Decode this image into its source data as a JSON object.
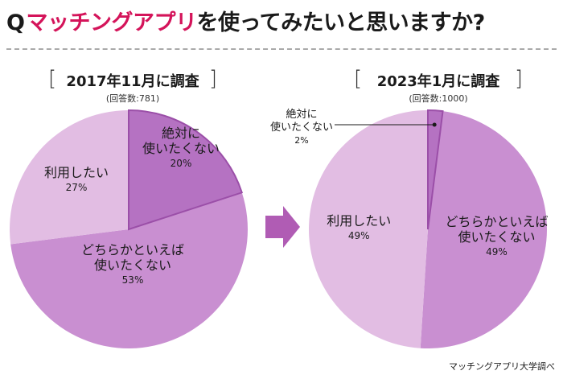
{
  "headline": {
    "q": "Q",
    "accent": "マッチングアプリ",
    "rest": "を使ってみたいと思いますか?"
  },
  "source": "マッチングアプリ大学調べ",
  "colors": {
    "light": "#e2bde3",
    "mid": "#c98fd1",
    "dark": "#b572c2",
    "stroke": "#9b4fa8",
    "arrow": "#b05cb4"
  },
  "chart_data": [
    {
      "type": "pie",
      "title": "2017年11月に調査",
      "subtitle": "(回答数:781)",
      "slices": [
        {
          "label": "絶対に\n使いたくない",
          "label_lines": [
            "絶対に",
            "使いたくない"
          ],
          "value": 20,
          "display": "20%"
        },
        {
          "label": "どちらかといえば\n使いたくない",
          "label_lines": [
            "どちらかといえば",
            "使いたくない"
          ],
          "value": 53,
          "display": "53%"
        },
        {
          "label": "利用したい",
          "label_lines": [
            "利用したい"
          ],
          "value": 27,
          "display": "27%"
        }
      ]
    },
    {
      "type": "pie",
      "title": "2023年1月に調査",
      "subtitle": "(回答数:1000)",
      "slices": [
        {
          "label": "絶対に\n使いたくない",
          "label_lines": [
            "絶対に",
            "使いたくない"
          ],
          "value": 2,
          "display": "2%"
        },
        {
          "label": "どちらかといえば\n使いたくない",
          "label_lines": [
            "どちらかといえば",
            "使いたくない"
          ],
          "value": 49,
          "display": "49%"
        },
        {
          "label": "利用したい",
          "label_lines": [
            "利用したい"
          ],
          "value": 49,
          "display": "49%"
        }
      ]
    }
  ]
}
